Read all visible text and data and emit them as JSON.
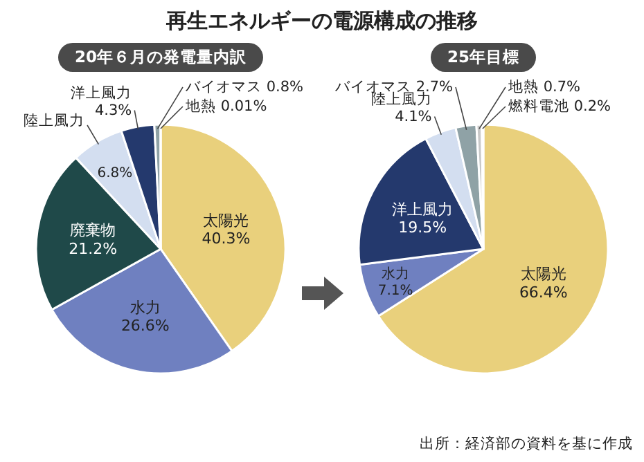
{
  "chart_data": [
    {
      "type": "pie",
      "title": "再生エネルギーの電源構成の推移",
      "subtitle": "20年６月の発電量内訳",
      "categories": [
        "太陽光",
        "水力",
        "廃棄物",
        "陸上風力",
        "洋上風力",
        "バイオマス",
        "地熱"
      ],
      "values": [
        40.3,
        26.6,
        21.2,
        6.8,
        4.3,
        0.8,
        0.01
      ],
      "value_labels": [
        "40.3%",
        "26.6%",
        "21.2%",
        "6.8%",
        "4.3%",
        "0.8%",
        "0.01%"
      ],
      "colors": [
        "#e9d07c",
        "#6f80c0",
        "#1f4949",
        "#d3def0",
        "#24396d",
        "#8fa2a6",
        "#c8c8c8"
      ]
    },
    {
      "type": "pie",
      "subtitle": "25年目標",
      "categories": [
        "太陽光",
        "水力",
        "洋上風力",
        "陸上風力",
        "バイオマス",
        "地熱",
        "燃料電池"
      ],
      "values": [
        66.4,
        7.1,
        19.5,
        4.1,
        2.7,
        0.7,
        0.2
      ],
      "value_labels": [
        "66.4%",
        "7.1%",
        "19.5%",
        "4.1%",
        "2.7%",
        "0.7%",
        "0.2%"
      ],
      "colors": [
        "#e9d07c",
        "#6f80c0",
        "#24396d",
        "#d3def0",
        "#8fa2a6",
        "#c8c8c8",
        "#24396d"
      ],
      "annotations": [
        "出所：経済部の資料を基に作成"
      ]
    }
  ]
}
